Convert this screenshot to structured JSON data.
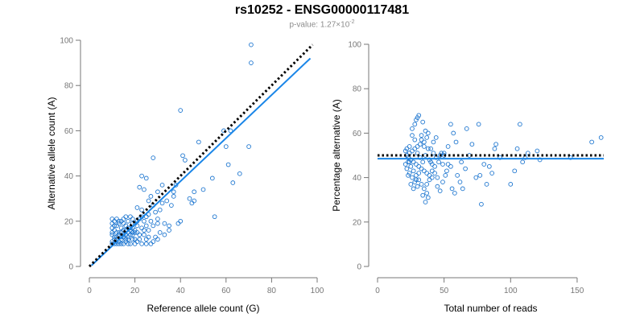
{
  "title": "rs10252 - ENSG00000117481",
  "subtitle": {
    "prefix": "p-value: 1.27×10",
    "exponent": "-2"
  },
  "colors": {
    "points": "#1f77d0",
    "fit": "#1a86e8",
    "reference": "#000000",
    "axis": "#777777"
  },
  "chart_data": [
    {
      "type": "scatter",
      "xlabel": "Reference allele count (G)",
      "ylabel": "Alternative allele count (A)",
      "xlim": [
        0,
        100
      ],
      "ylim": [
        0,
        100
      ],
      "xticks": [
        0,
        20,
        40,
        60,
        80,
        100
      ],
      "yticks": [
        0,
        20,
        40,
        60,
        80,
        100
      ],
      "grid": false,
      "reference_line": {
        "style": "dotted",
        "points": [
          [
            0,
            0
          ],
          [
            98,
            98
          ]
        ]
      },
      "fit_line": {
        "style": "solid",
        "points": [
          [
            1,
            0.5
          ],
          [
            97,
            92
          ]
        ]
      },
      "points": [
        [
          71,
          98
        ],
        [
          71,
          90
        ],
        [
          40,
          69
        ],
        [
          62,
          60
        ],
        [
          59,
          60
        ],
        [
          48,
          55
        ],
        [
          60,
          53
        ],
        [
          70,
          53
        ],
        [
          41,
          49
        ],
        [
          42,
          47
        ],
        [
          28,
          48
        ],
        [
          61,
          45
        ],
        [
          66,
          41
        ],
        [
          54,
          39
        ],
        [
          63,
          37
        ],
        [
          38,
          36
        ],
        [
          37,
          33
        ],
        [
          46,
          33
        ],
        [
          25,
          39
        ],
        [
          23,
          40
        ],
        [
          30,
          33
        ],
        [
          32,
          36
        ],
        [
          24,
          34
        ],
        [
          46,
          29
        ],
        [
          37,
          31
        ],
        [
          22,
          35
        ],
        [
          55,
          22
        ],
        [
          40,
          20
        ],
        [
          39,
          19
        ],
        [
          33,
          19
        ],
        [
          30,
          21
        ],
        [
          31,
          25
        ],
        [
          28,
          27
        ],
        [
          27,
          31
        ],
        [
          26,
          29
        ],
        [
          23,
          25
        ],
        [
          21,
          26
        ],
        [
          25,
          22
        ],
        [
          24,
          20
        ],
        [
          22,
          21
        ],
        [
          20,
          19
        ],
        [
          18,
          22
        ],
        [
          16,
          22
        ],
        [
          15,
          21
        ],
        [
          12,
          21
        ],
        [
          10,
          21
        ],
        [
          11,
          20
        ],
        [
          13,
          19
        ],
        [
          14,
          20
        ],
        [
          17,
          20
        ],
        [
          19,
          21
        ],
        [
          21,
          18
        ],
        [
          23,
          17
        ],
        [
          26,
          16
        ],
        [
          28,
          18
        ],
        [
          24,
          14
        ],
        [
          22,
          12
        ],
        [
          25,
          12
        ],
        [
          27,
          10
        ],
        [
          29,
          13
        ],
        [
          31,
          15
        ],
        [
          33,
          14
        ],
        [
          35,
          16
        ],
        [
          20,
          15
        ],
        [
          18,
          17
        ],
        [
          16,
          18
        ],
        [
          14,
          17
        ],
        [
          12,
          18
        ],
        [
          10,
          17
        ],
        [
          11,
          16
        ],
        [
          13,
          15
        ],
        [
          15,
          14
        ],
        [
          17,
          13
        ],
        [
          19,
          12
        ],
        [
          21,
          11
        ],
        [
          23,
          10
        ],
        [
          25,
          10
        ],
        [
          10,
          14
        ],
        [
          11,
          13
        ],
        [
          12,
          12
        ],
        [
          13,
          11
        ],
        [
          14,
          10
        ],
        [
          15,
          10
        ],
        [
          16,
          11
        ],
        [
          17,
          12
        ],
        [
          18,
          14
        ],
        [
          19,
          15
        ],
        [
          20,
          16
        ],
        [
          10,
          11
        ],
        [
          11,
          10
        ],
        [
          12,
          10
        ],
        [
          13,
          10
        ],
        [
          14,
          12
        ],
        [
          15,
          13
        ],
        [
          16,
          14
        ],
        [
          17,
          15
        ],
        [
          18,
          16
        ],
        [
          19,
          17
        ],
        [
          21,
          15
        ],
        [
          22,
          14
        ],
        [
          24,
          16
        ],
        [
          26,
          13
        ],
        [
          28,
          11
        ],
        [
          30,
          12
        ],
        [
          10,
          19
        ],
        [
          12,
          15
        ],
        [
          14,
          13
        ],
        [
          16,
          16
        ],
        [
          18,
          10
        ],
        [
          20,
          10
        ],
        [
          10,
          10
        ],
        [
          11,
          12
        ],
        [
          13,
          14
        ],
        [
          15,
          16
        ],
        [
          17,
          17
        ],
        [
          19,
          19
        ],
        [
          21,
          20
        ],
        [
          23,
          22
        ],
        [
          26,
          23
        ],
        [
          29,
          24
        ],
        [
          32,
          28
        ],
        [
          36,
          27
        ],
        [
          44,
          30
        ],
        [
          45,
          28
        ],
        [
          34,
          29
        ],
        [
          50,
          34
        ],
        [
          27,
          20
        ],
        [
          30,
          19
        ],
        [
          35,
          18
        ],
        [
          25,
          18
        ],
        [
          20,
          12
        ],
        [
          19,
          14
        ],
        [
          17,
          10
        ],
        [
          15,
          19
        ],
        [
          13,
          20
        ],
        [
          11,
          18
        ],
        [
          10,
          15
        ],
        [
          12,
          13
        ],
        [
          14,
          15
        ],
        [
          16,
          12
        ]
      ]
    },
    {
      "type": "scatter",
      "xlabel": "Total number of reads",
      "ylabel": "Percentage alternative (A)",
      "xlim": [
        0,
        170
      ],
      "ylim": [
        0,
        100
      ],
      "xticks": [
        0,
        50,
        100,
        150
      ],
      "yticks": [
        0,
        20,
        40,
        60,
        80,
        100
      ],
      "grid": false,
      "reference_line": {
        "style": "dotted",
        "points": [
          [
            0,
            50
          ],
          [
            170,
            50
          ]
        ]
      },
      "fit_line": {
        "style": "solid",
        "points": [
          [
            0,
            48.5
          ],
          [
            170,
            48.5
          ]
        ]
      },
      "points": [
        [
          30,
          67
        ],
        [
          29,
          66
        ],
        [
          31,
          68
        ],
        [
          28,
          64
        ],
        [
          26,
          62
        ],
        [
          34,
          65
        ],
        [
          36,
          61
        ],
        [
          38,
          60
        ],
        [
          37,
          58
        ],
        [
          33,
          57
        ],
        [
          35,
          56
        ],
        [
          32,
          55
        ],
        [
          30,
          54
        ],
        [
          28,
          53
        ],
        [
          26,
          52
        ],
        [
          24,
          51
        ],
        [
          22,
          50
        ],
        [
          23,
          49
        ],
        [
          25,
          48
        ],
        [
          27,
          47
        ],
        [
          29,
          46
        ],
        [
          31,
          45
        ],
        [
          33,
          44
        ],
        [
          35,
          43
        ],
        [
          37,
          42
        ],
        [
          39,
          41
        ],
        [
          41,
          40
        ],
        [
          24,
          54
        ],
        [
          22,
          53
        ],
        [
          21,
          52
        ],
        [
          23,
          47
        ],
        [
          25,
          45
        ],
        [
          27,
          43
        ],
        [
          29,
          41
        ],
        [
          31,
          39
        ],
        [
          33,
          37
        ],
        [
          35,
          35
        ],
        [
          37,
          33
        ],
        [
          38,
          31
        ],
        [
          36,
          29
        ],
        [
          34,
          32
        ],
        [
          30,
          36
        ],
        [
          28,
          38
        ],
        [
          26,
          40
        ],
        [
          24,
          42
        ],
        [
          22,
          44
        ],
        [
          40,
          53
        ],
        [
          42,
          51
        ],
        [
          44,
          49
        ],
        [
          46,
          47
        ],
        [
          48,
          51
        ],
        [
          50,
          50
        ],
        [
          43,
          45
        ],
        [
          41,
          43
        ],
        [
          39,
          39
        ],
        [
          37,
          37
        ],
        [
          45,
          36
        ],
        [
          47,
          34
        ],
        [
          49,
          38
        ],
        [
          51,
          41
        ],
        [
          53,
          46
        ],
        [
          55,
          45
        ],
        [
          55,
          64
        ],
        [
          57,
          60
        ],
        [
          59,
          56
        ],
        [
          53,
          54
        ],
        [
          50,
          51
        ],
        [
          56,
          35
        ],
        [
          58,
          33
        ],
        [
          63,
          47
        ],
        [
          66,
          44
        ],
        [
          67,
          62
        ],
        [
          69,
          50
        ],
        [
          71,
          55
        ],
        [
          76,
          64
        ],
        [
          74,
          40
        ],
        [
          78,
          28
        ],
        [
          77,
          41
        ],
        [
          80,
          46
        ],
        [
          84,
          45
        ],
        [
          88,
          53
        ],
        [
          89,
          55
        ],
        [
          92,
          49
        ],
        [
          100,
          37
        ],
        [
          103,
          43
        ],
        [
          105,
          53
        ],
        [
          107,
          64
        ],
        [
          109,
          47
        ],
        [
          111,
          49
        ],
        [
          113,
          51
        ],
        [
          120,
          52
        ],
        [
          122,
          48
        ],
        [
          145,
          49
        ],
        [
          161,
          56
        ],
        [
          168,
          58
        ],
        [
          34,
          47
        ],
        [
          36,
          50
        ],
        [
          38,
          53
        ],
        [
          40,
          47
        ],
        [
          42,
          56
        ],
        [
          44,
          58
        ],
        [
          32,
          49
        ],
        [
          30,
          51
        ],
        [
          28,
          57
        ],
        [
          26,
          59
        ],
        [
          24,
          47
        ],
        [
          35,
          54
        ],
        [
          33,
          59
        ],
        [
          31,
          42
        ],
        [
          29,
          39
        ],
        [
          27,
          35
        ],
        [
          25,
          37
        ],
        [
          23,
          41
        ],
        [
          21,
          46
        ],
        [
          39,
          48
        ],
        [
          41,
          46
        ],
        [
          43,
          42
        ],
        [
          45,
          40
        ],
        [
          47,
          50
        ],
        [
          49,
          46
        ],
        [
          52,
          43
        ],
        [
          60,
          41
        ],
        [
          62,
          38
        ],
        [
          64,
          35
        ],
        [
          82,
          37
        ],
        [
          86,
          42
        ]
      ]
    }
  ]
}
